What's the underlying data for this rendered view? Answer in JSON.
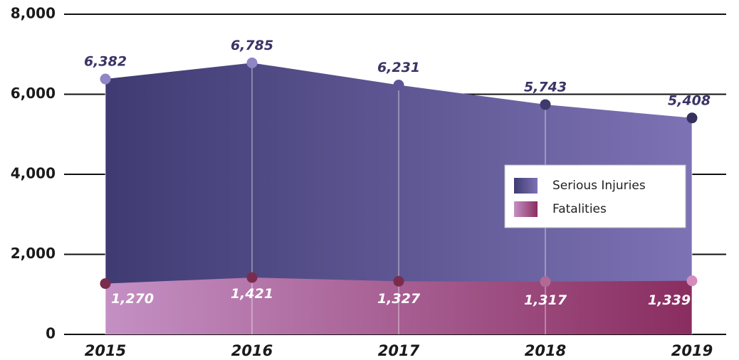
{
  "chart_data": {
    "type": "area",
    "categories": [
      "2015",
      "2016",
      "2017",
      "2018",
      "2019"
    ],
    "ylim": [
      0,
      8000
    ],
    "yticks": [
      0,
      {
        "value": 2000,
        "label": "2,000"
      },
      {
        "value": 4000,
        "label": "4,000"
      },
      {
        "value": 6000,
        "label": "6,000"
      },
      {
        "value": 8000,
        "label": "8,000"
      }
    ],
    "grid": true,
    "legend": "right",
    "series": [
      {
        "name": "Serious Injuries",
        "color": "#3f3b72",
        "gradient": [
          "#3f3b72",
          "#7d72b4"
        ],
        "marker_colors": [
          "#8f86c6",
          "#8f86c6",
          "#5d5696",
          "#3f3a6c",
          "#35305e"
        ],
        "label_color": "#3a3466",
        "values": [
          6382,
          6785,
          6231,
          5743,
          5408
        ],
        "value_labels": [
          "6,382",
          "6,785",
          "6,231",
          "5,743",
          "5,408"
        ]
      },
      {
        "name": "Fatalities",
        "color": "#c08ec0",
        "gradient": [
          "#c490c4",
          "#8a2d60"
        ],
        "marker_colors": [
          "#7a2c4e",
          "#7a2c4e",
          "#7a2c4e",
          "#b06a94",
          "#d48cbc"
        ],
        "label_color": "#ffffff",
        "values": [
          1270,
          1421,
          1327,
          1317,
          1339
        ],
        "value_labels": [
          "1,270",
          "1,421",
          "1,327",
          "1,317",
          "1,339"
        ]
      }
    ]
  }
}
